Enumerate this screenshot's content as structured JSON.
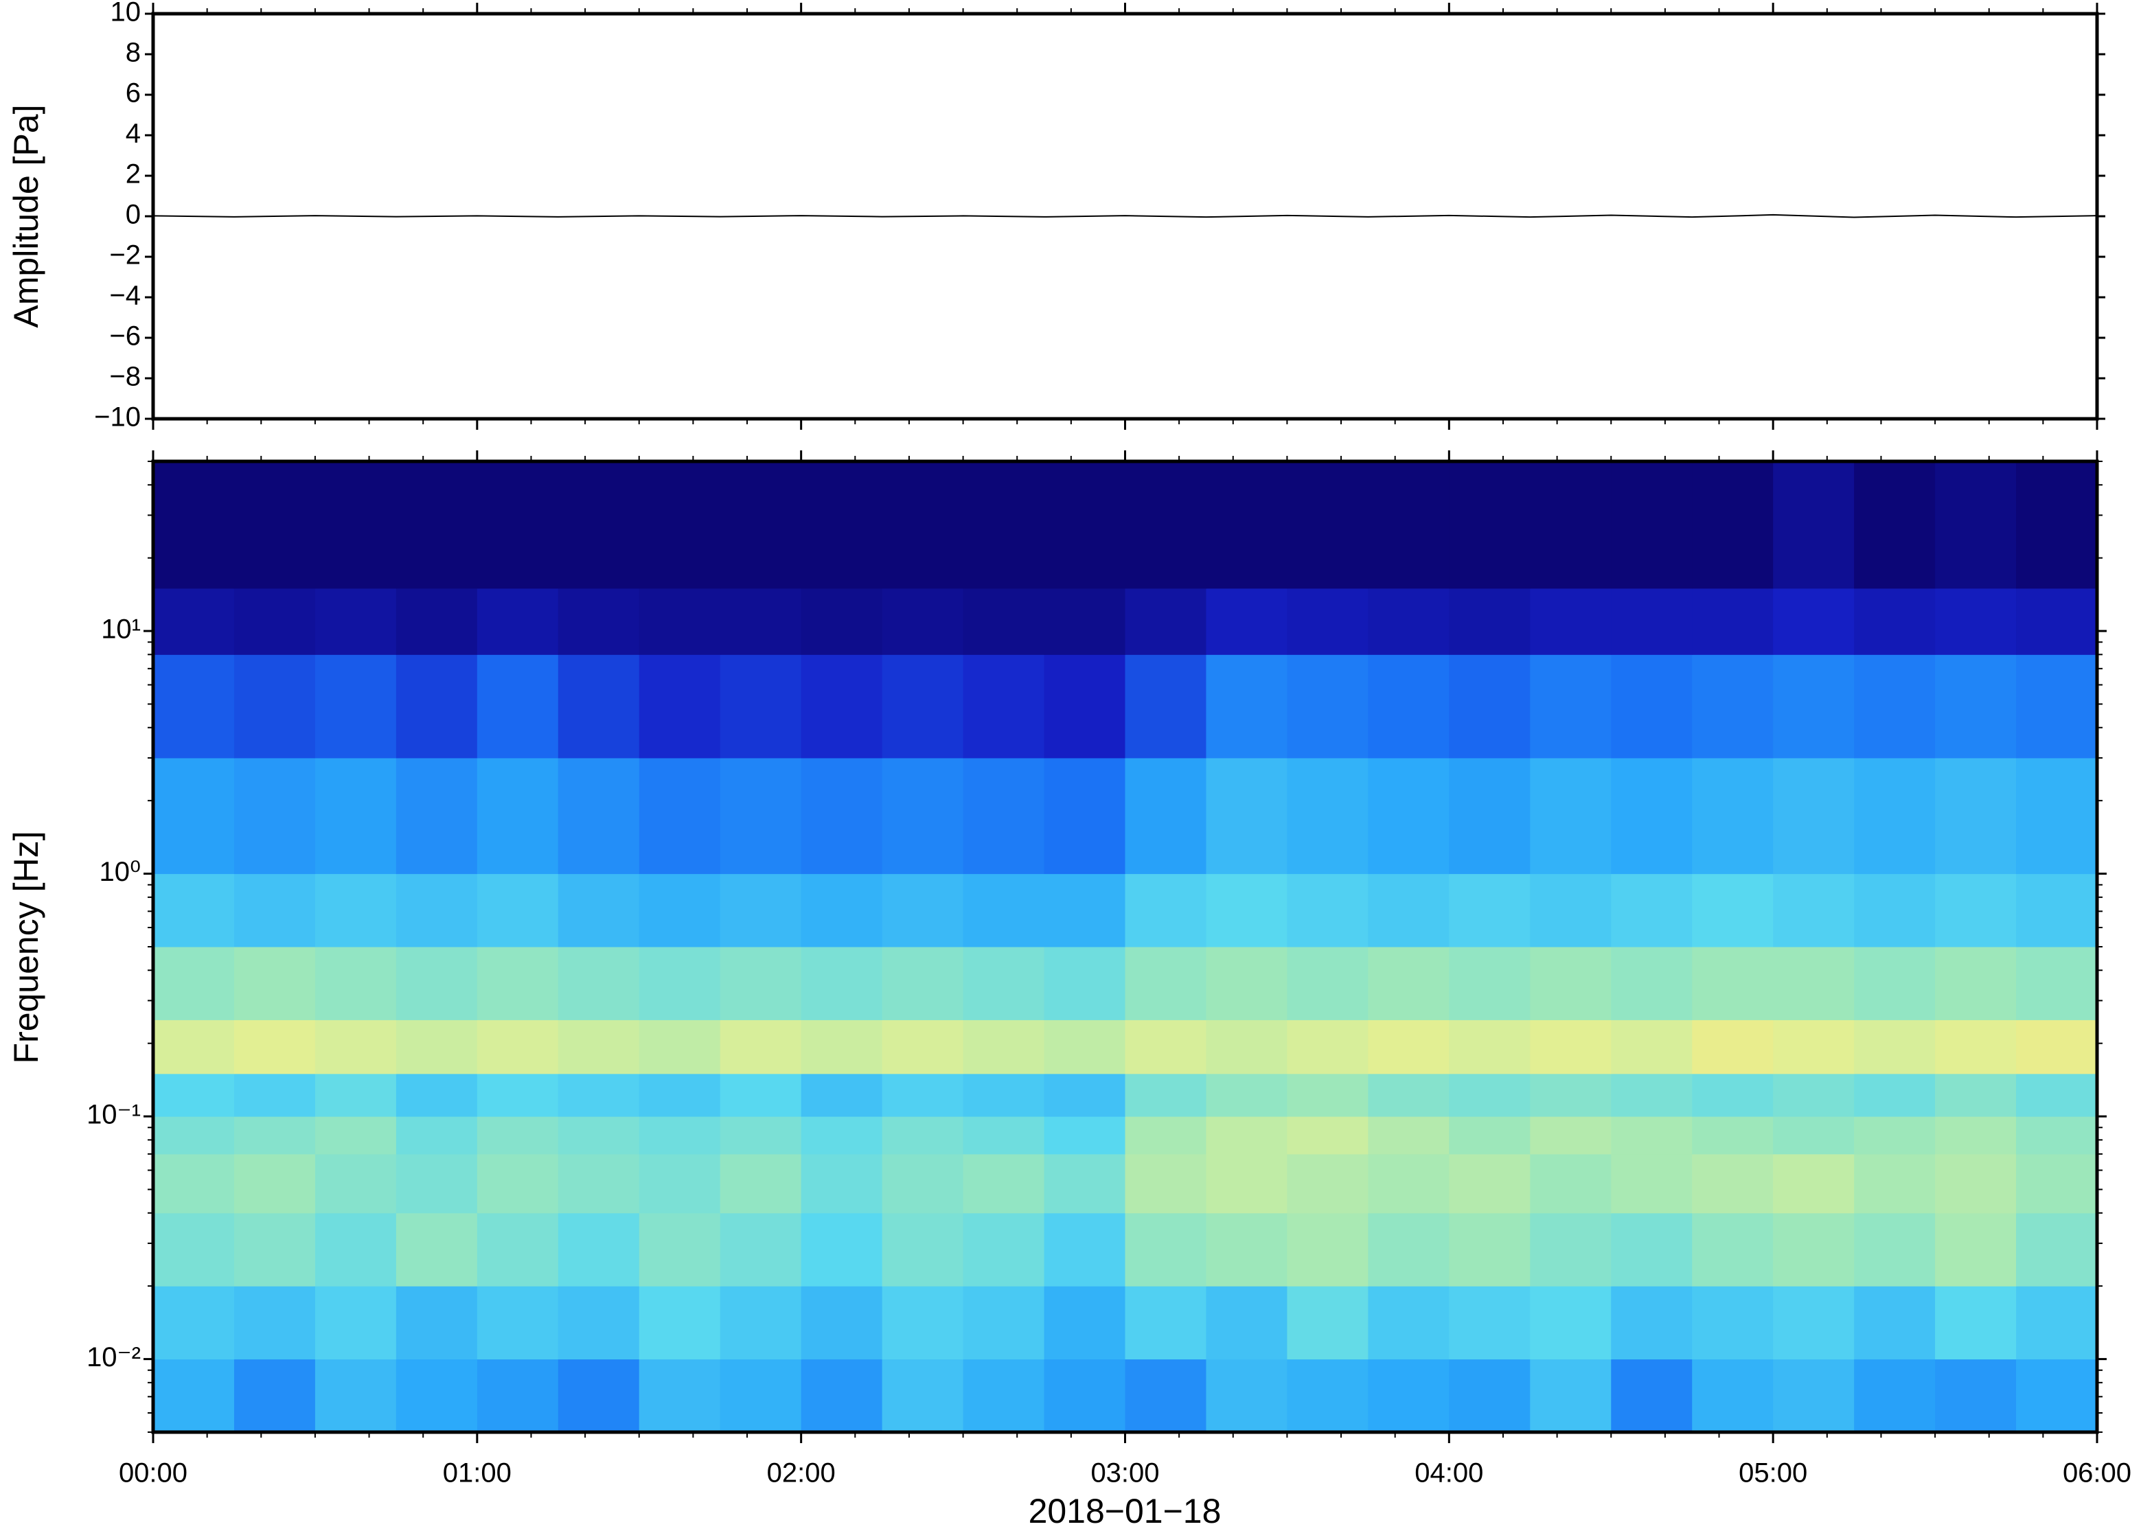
{
  "chart_data": [
    {
      "type": "line",
      "ylabel": "Amplitude [Pa]",
      "color": "#000000",
      "x": [
        "00:00",
        "00:15",
        "00:30",
        "00:45",
        "01:00",
        "01:15",
        "01:30",
        "01:45",
        "02:00",
        "02:15",
        "02:30",
        "02:45",
        "03:00",
        "03:15",
        "03:30",
        "03:45",
        "04:00",
        "04:15",
        "04:30",
        "04:45",
        "05:00",
        "05:15",
        "05:30",
        "05:45",
        "06:00"
      ],
      "values": [
        0.02,
        -0.03,
        0.03,
        -0.02,
        0.02,
        -0.03,
        0.02,
        -0.02,
        0.03,
        -0.02,
        0.02,
        -0.03,
        0.03,
        -0.04,
        0.04,
        -0.03,
        0.04,
        -0.04,
        0.05,
        -0.04,
        0.07,
        -0.05,
        0.05,
        -0.04,
        0.03
      ],
      "xlim": [
        "00:00",
        "06:00"
      ],
      "ylim": [
        -10,
        10
      ],
      "yticks": [
        {
          "value": -10,
          "label": "−10"
        },
        {
          "value": -8,
          "label": "−8"
        },
        {
          "value": -6,
          "label": "−6"
        },
        {
          "value": -4,
          "label": "−4"
        },
        {
          "value": -2,
          "label": "−2"
        },
        0,
        2,
        4,
        6,
        8,
        10
      ]
    },
    {
      "type": "heatmap",
      "ylabel": "Frequency [Hz]",
      "xlabel": "2018−01−18",
      "log_y": true,
      "colormap": [
        "#0b0470",
        "#1520c8",
        "#1a6ef5",
        "#2aa8fa",
        "#58d8f0",
        "#a0e8b8",
        "#e8f090",
        "#f5c870",
        "#f08040"
      ],
      "xlim": [
        "00:00",
        "06:00"
      ],
      "xticks": [
        "00:00",
        "01:00",
        "02:00",
        "03:00",
        "04:00",
        "05:00",
        "06:00"
      ],
      "ylim": [
        0.005,
        50
      ],
      "yticks": [
        {
          "value": 0.01,
          "label": "10⁻²"
        },
        {
          "value": 0.1,
          "label": "10⁻¹"
        },
        {
          "value": 1,
          "label": "10⁰"
        },
        {
          "value": 10,
          "label": "10¹"
        }
      ],
      "x": [
        "00:00",
        "00:15",
        "00:30",
        "00:45",
        "01:00",
        "01:15",
        "01:30",
        "01:45",
        "02:00",
        "02:15",
        "02:30",
        "02:45",
        "03:00",
        "03:15",
        "03:30",
        "03:45",
        "04:00",
        "04:15",
        "04:30",
        "04:45",
        "05:00",
        "05:15",
        "05:30",
        "05:45"
      ],
      "freq_bins": [
        0.005,
        0.01,
        0.02,
        0.04,
        0.07,
        0.1,
        0.15,
        0.25,
        0.5,
        1,
        3,
        8,
        15,
        50
      ],
      "values": [
        [
          0.4,
          0.32,
          0.42,
          0.38,
          0.35,
          0.3,
          0.42,
          0.4,
          0.34,
          0.44,
          0.4,
          0.36,
          0.32,
          0.42,
          0.4,
          0.38,
          0.36,
          0.44,
          0.3,
          0.4,
          0.42,
          0.36,
          0.34,
          0.38
        ],
        [
          0.46,
          0.44,
          0.48,
          0.42,
          0.46,
          0.44,
          0.5,
          0.46,
          0.42,
          0.48,
          0.46,
          0.4,
          0.48,
          0.44,
          0.52,
          0.46,
          0.48,
          0.5,
          0.44,
          0.46,
          0.48,
          0.44,
          0.5,
          0.46
        ],
        [
          0.56,
          0.58,
          0.54,
          0.6,
          0.56,
          0.52,
          0.58,
          0.55,
          0.5,
          0.56,
          0.54,
          0.48,
          0.6,
          0.62,
          0.64,
          0.6,
          0.62,
          0.58,
          0.56,
          0.6,
          0.62,
          0.6,
          0.64,
          0.58
        ],
        [
          0.6,
          0.62,
          0.58,
          0.56,
          0.6,
          0.58,
          0.56,
          0.6,
          0.54,
          0.58,
          0.6,
          0.56,
          0.66,
          0.68,
          0.66,
          0.64,
          0.66,
          0.62,
          0.64,
          0.66,
          0.68,
          0.64,
          0.66,
          0.62
        ],
        [
          0.56,
          0.58,
          0.6,
          0.54,
          0.58,
          0.56,
          0.54,
          0.56,
          0.52,
          0.56,
          0.54,
          0.5,
          0.64,
          0.68,
          0.7,
          0.66,
          0.62,
          0.66,
          0.64,
          0.62,
          0.6,
          0.62,
          0.64,
          0.6
        ],
        [
          0.5,
          0.48,
          0.52,
          0.46,
          0.5,
          0.48,
          0.46,
          0.5,
          0.44,
          0.48,
          0.46,
          0.44,
          0.56,
          0.6,
          0.62,
          0.58,
          0.56,
          0.58,
          0.56,
          0.54,
          0.56,
          0.54,
          0.58,
          0.54
        ],
        [
          0.72,
          0.74,
          0.72,
          0.7,
          0.72,
          0.7,
          0.68,
          0.72,
          0.7,
          0.72,
          0.7,
          0.68,
          0.72,
          0.7,
          0.72,
          0.74,
          0.72,
          0.74,
          0.72,
          0.76,
          0.74,
          0.72,
          0.74,
          0.76
        ],
        [
          0.6,
          0.62,
          0.6,
          0.58,
          0.6,
          0.58,
          0.56,
          0.58,
          0.56,
          0.58,
          0.56,
          0.54,
          0.6,
          0.62,
          0.6,
          0.62,
          0.6,
          0.62,
          0.6,
          0.62,
          0.62,
          0.6,
          0.62,
          0.6
        ],
        [
          0.46,
          0.44,
          0.46,
          0.44,
          0.46,
          0.42,
          0.4,
          0.42,
          0.4,
          0.42,
          0.4,
          0.4,
          0.48,
          0.5,
          0.48,
          0.46,
          0.48,
          0.46,
          0.48,
          0.5,
          0.48,
          0.46,
          0.48,
          0.46
        ],
        [
          0.36,
          0.34,
          0.36,
          0.32,
          0.36,
          0.32,
          0.28,
          0.3,
          0.28,
          0.3,
          0.28,
          0.26,
          0.36,
          0.42,
          0.4,
          0.38,
          0.36,
          0.4,
          0.38,
          0.4,
          0.42,
          0.4,
          0.42,
          0.4
        ],
        [
          0.22,
          0.2,
          0.22,
          0.18,
          0.24,
          0.18,
          0.14,
          0.16,
          0.14,
          0.16,
          0.14,
          0.12,
          0.2,
          0.3,
          0.28,
          0.26,
          0.24,
          0.28,
          0.26,
          0.28,
          0.3,
          0.28,
          0.3,
          0.28
        ],
        [
          0.07,
          0.06,
          0.07,
          0.05,
          0.08,
          0.06,
          0.05,
          0.05,
          0.04,
          0.05,
          0.04,
          0.04,
          0.07,
          0.11,
          0.1,
          0.09,
          0.08,
          0.1,
          0.1,
          0.1,
          0.12,
          0.1,
          0.11,
          0.1
        ],
        [
          0.01,
          0.01,
          0.01,
          0.01,
          0.01,
          0.01,
          0.01,
          0.01,
          0.01,
          0.01,
          0.01,
          0.01,
          0.01,
          0.01,
          0.01,
          0.01,
          0.01,
          0.01,
          0.01,
          0.01,
          0.05,
          0.01,
          0.03,
          0.01
        ]
      ]
    }
  ]
}
